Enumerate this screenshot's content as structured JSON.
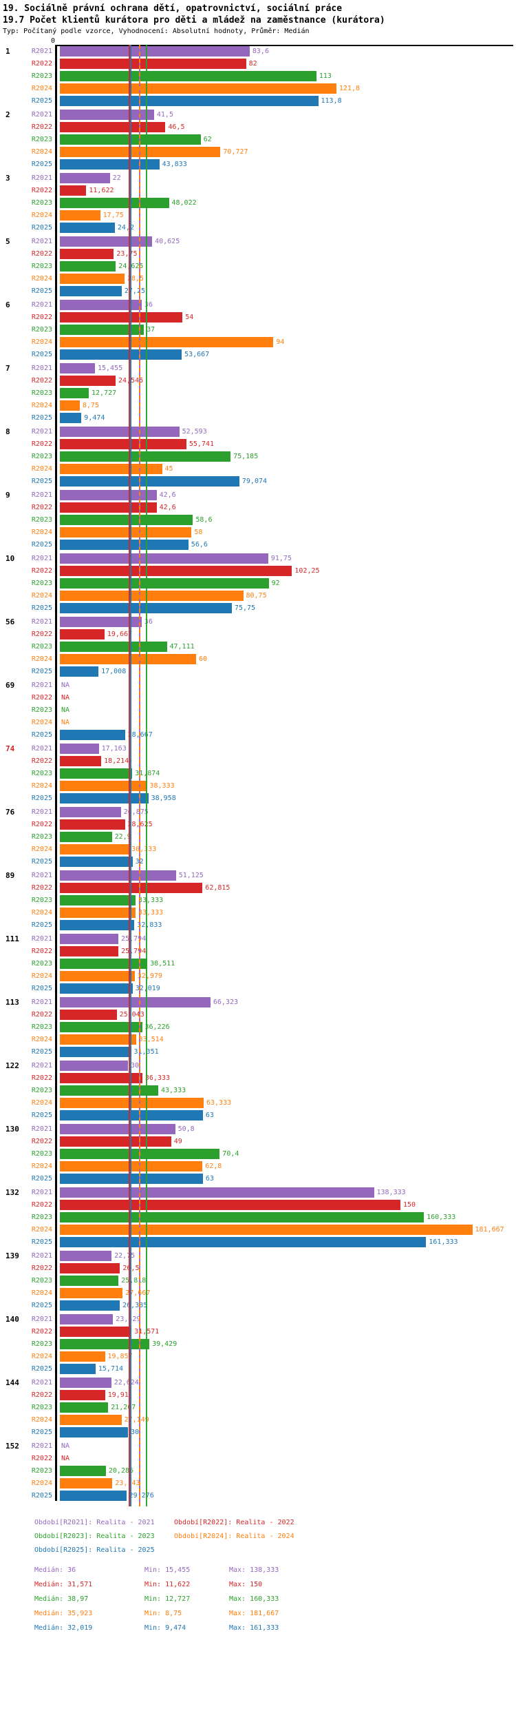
{
  "header": {
    "title_line1": "19. Sociálně právní ochrana dětí, opatrovnictví, sociální práce",
    "title_line2": "19.7 Počet klientů kurátora pro děti a mládež na zaměstnance (kurátora)",
    "subtitle": "Typ: Počítaný podle vzorce, Vyhodnocení: Absolutní hodnoty, Průměr: Medián"
  },
  "axis": {
    "zero_label": "0"
  },
  "chart_data": {
    "type": "bar",
    "orientation": "horizontal",
    "title": "19.7 Počet klientů kurátora pro děti a mládež na zaměstnance (kurátora)",
    "x_min": 0,
    "x_max": 190,
    "grid": false,
    "na_text": "NA",
    "series": [
      "R2021",
      "R2022",
      "R2023",
      "R2024",
      "R2025"
    ],
    "colors": {
      "R2021": "#9467bd",
      "R2022": "#d62728",
      "R2023": "#2ca02c",
      "R2024": "#ff7f0e",
      "R2025": "#1f77b4"
    },
    "median_line_dashed": [
      "R2024"
    ],
    "groups": [
      {
        "id": "1",
        "highlight": false,
        "values": [
          83.6,
          82,
          113,
          121.8,
          113.8
        ],
        "labels": [
          "83,6",
          "82",
          "113",
          "121,8",
          "113,8"
        ]
      },
      {
        "id": "2",
        "highlight": false,
        "values": [
          41.5,
          46.5,
          62,
          70.727,
          43.833
        ],
        "labels": [
          "41,5",
          "46,5",
          "62",
          "70,727",
          "43,833"
        ]
      },
      {
        "id": "3",
        "highlight": false,
        "values": [
          22,
          11.622,
          48.022,
          17.75,
          24.2
        ],
        "labels": [
          "22",
          "11,622",
          "48,022",
          "17,75",
          "24,2"
        ]
      },
      {
        "id": "5",
        "highlight": false,
        "values": [
          40.625,
          23.75,
          24.625,
          28.5,
          27.25
        ],
        "labels": [
          "40,625",
          "23,75",
          "24,625",
          "28,5",
          "27,25"
        ]
      },
      {
        "id": "6",
        "highlight": false,
        "values": [
          36,
          54,
          37,
          94,
          53.667
        ],
        "labels": [
          "36",
          "54",
          "37",
          "94",
          "53,667"
        ]
      },
      {
        "id": "7",
        "highlight": false,
        "values": [
          15.455,
          24.545,
          12.727,
          8.75,
          9.474
        ],
        "labels": [
          "15,455",
          "24,545",
          "12,727",
          "8,75",
          "9,474"
        ]
      },
      {
        "id": "8",
        "highlight": false,
        "values": [
          52.593,
          55.741,
          75.185,
          45,
          79.074
        ],
        "labels": [
          "52,593",
          "55,741",
          "75,185",
          "45",
          "79,074"
        ]
      },
      {
        "id": "9",
        "highlight": false,
        "values": [
          42.6,
          42.6,
          58.6,
          58,
          56.6
        ],
        "labels": [
          "42,6",
          "42,6",
          "58,6",
          "58",
          "56,6"
        ]
      },
      {
        "id": "10",
        "highlight": false,
        "values": [
          91.75,
          102.25,
          92,
          80.75,
          75.75
        ],
        "labels": [
          "91,75",
          "102,25",
          "92",
          "80,75",
          "75,75"
        ]
      },
      {
        "id": "56",
        "highlight": false,
        "values": [
          36,
          19.667,
          47.111,
          60,
          17.008
        ],
        "labels": [
          "36",
          "19,667",
          "47,111",
          "60",
          "17,008"
        ]
      },
      {
        "id": "69",
        "highlight": false,
        "values": [
          null,
          null,
          null,
          null,
          28.667
        ],
        "labels": [
          "NA",
          "NA",
          "NA",
          "NA",
          "28,667"
        ]
      },
      {
        "id": "74",
        "highlight": true,
        "values": [
          17.163,
          18.214,
          31.874,
          38.333,
          38.958
        ],
        "labels": [
          "17,163",
          "18,214",
          "31,874",
          "38,333",
          "38,958"
        ]
      },
      {
        "id": "76",
        "highlight": false,
        "values": [
          26.875,
          28.625,
          22.9,
          30.333,
          32
        ],
        "labels": [
          "26,875",
          "28,625",
          "22,9",
          "30,333",
          "32"
        ]
      },
      {
        "id": "89",
        "highlight": false,
        "values": [
          51.125,
          62.815,
          33.333,
          33.333,
          32.833
        ],
        "labels": [
          "51,125",
          "62,815",
          "33,333",
          "33,333",
          "32,833"
        ]
      },
      {
        "id": "111",
        "highlight": false,
        "values": [
          25.794,
          25.794,
          38.511,
          32.979,
          32.019
        ],
        "labels": [
          "25,794",
          "25,794",
          "38,511",
          "32,979",
          "32,019"
        ]
      },
      {
        "id": "113",
        "highlight": false,
        "values": [
          66.323,
          25.043,
          36.226,
          33.514,
          31.351
        ],
        "labels": [
          "66,323",
          "25,043",
          "36,226",
          "33,514",
          "31,351"
        ]
      },
      {
        "id": "122",
        "highlight": false,
        "values": [
          30,
          36.333,
          43.333,
          63.333,
          63
        ],
        "labels": [
          "30",
          "36,333",
          "43,333",
          "63,333",
          "63"
        ]
      },
      {
        "id": "130",
        "highlight": false,
        "values": [
          50.8,
          49,
          70.4,
          62.8,
          63
        ],
        "labels": [
          "50,8",
          "49",
          "70,4",
          "62,8",
          "63"
        ]
      },
      {
        "id": "132",
        "highlight": false,
        "values": [
          138.333,
          150,
          160.333,
          181.667,
          161.333
        ],
        "labels": [
          "138,333",
          "150",
          "160,333",
          "181,667",
          "161,333"
        ]
      },
      {
        "id": "139",
        "highlight": false,
        "values": [
          22.75,
          26.5,
          25.818,
          27.667,
          26.385
        ],
        "labels": [
          "22,75",
          "26,5",
          "25,818",
          "27,667",
          "26,385"
        ]
      },
      {
        "id": "140",
        "highlight": false,
        "values": [
          23.429,
          31.571,
          39.429,
          19.857,
          15.714
        ],
        "labels": [
          "23,429",
          "31,571",
          "39,429",
          "19,857",
          "15,714"
        ]
      },
      {
        "id": "144",
        "highlight": false,
        "values": [
          22.624,
          19.91,
          21.267,
          27.149,
          30
        ],
        "labels": [
          "22,624",
          "19,91",
          "21,267",
          "27,149",
          "30"
        ]
      },
      {
        "id": "152",
        "highlight": false,
        "values": [
          null,
          null,
          20.286,
          23.143,
          29.276
        ],
        "labels": [
          "NA",
          "NA",
          "20,286",
          "23,143",
          "29,276"
        ]
      }
    ],
    "medians": {
      "R2021": 36,
      "R2022": 31.571,
      "R2023": 38.97,
      "R2024": 35.923,
      "R2025": 32.019
    }
  },
  "legend": {
    "items": [
      {
        "series": "R2021",
        "label": "Období[R2021]: Realita - 2021"
      },
      {
        "series": "R2022",
        "label": "Období[R2022]: Realita - 2022"
      },
      {
        "series": "R2023",
        "label": "Období[R2023]: Realita - 2023"
      },
      {
        "series": "R2024",
        "label": "Období[R2024]: Realita - 2024"
      },
      {
        "series": "R2025",
        "label": "Období[R2025]: Realita - 2025"
      }
    ]
  },
  "stats": {
    "rows": [
      {
        "series": "R2021",
        "median": "Medián: 36",
        "min": "Min: 15,455",
        "max": "Max: 138,333"
      },
      {
        "series": "R2022",
        "median": "Medián: 31,571",
        "min": "Min: 11,622",
        "max": "Max: 150"
      },
      {
        "series": "R2023",
        "median": "Medián: 38,97",
        "min": "Min: 12,727",
        "max": "Max: 160,333"
      },
      {
        "series": "R2024",
        "median": "Medián: 35,923",
        "min": "Min: 8,75",
        "max": "Max: 181,667"
      },
      {
        "series": "R2025",
        "median": "Medián: 32,019",
        "min": "Min: 9,474",
        "max": "Max: 161,333"
      }
    ]
  }
}
